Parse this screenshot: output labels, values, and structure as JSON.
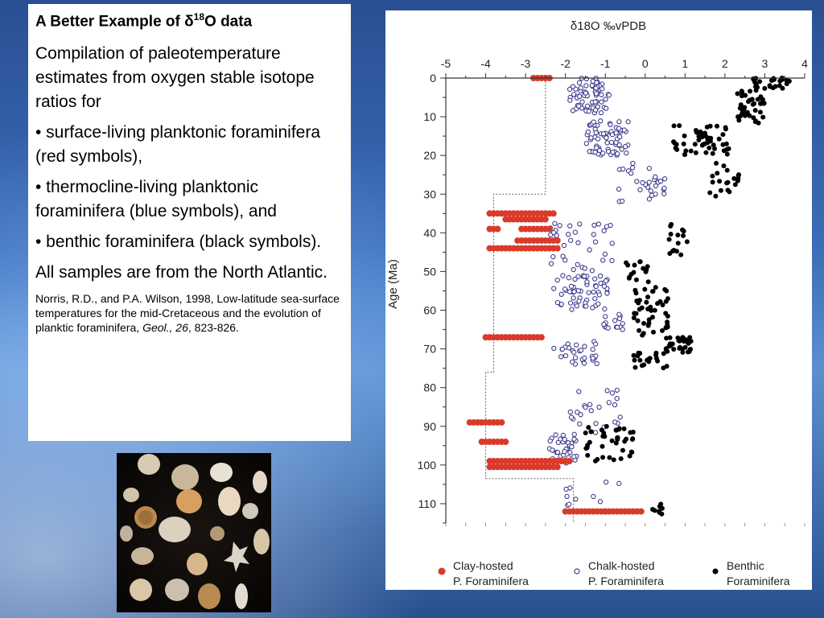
{
  "textbox": {
    "title_prefix": "A Better Example of δ",
    "title_sup": "18",
    "title_suffix": "O data",
    "intro": "Compilation of paleotemperature estimates from oxygen stable isotope ratios for",
    "bullet1": "• surface-living planktonic foraminifera (red symbols),",
    "bullet2": "• thermocline-living planktonic foraminifera (blue symbols), and",
    "bullet3": "• benthic foraminifera (black symbols).",
    "note": "All samples are from the North Atlantic.",
    "ref_text": "Norris, R.D., and P.A. Wilson, 1998, Low-latitude sea-surface temperatures for the mid-Cretaceous and the evolution of planktic foraminifera, ",
    "ref_journal": "Geol., 26",
    "ref_pages": ", 823-826."
  },
  "colors": {
    "clay": "#d93a2a",
    "chalk": "#3d3a8c",
    "benthic": "#000000"
  },
  "chart_data": {
    "type": "scatter",
    "title": "δ18O ‰vPDB",
    "xlabel": "δ18O ‰vPDB",
    "ylabel": "Age (Ma)",
    "xlim": [
      -5,
      4
    ],
    "ylim": [
      0,
      115
    ],
    "x_axis_position": "top",
    "y_inverted": true,
    "xticks": [
      -5,
      -4,
      -3,
      -2,
      -1,
      0,
      1,
      2,
      3,
      4
    ],
    "yticks": [
      0,
      10,
      20,
      30,
      40,
      50,
      60,
      70,
      80,
      90,
      100,
      110
    ],
    "grid": false,
    "series": [
      {
        "name": "Clay-hosted P. Foraminifera",
        "legend_line1": "Clay-hosted",
        "legend_line2": "P. Foraminifera",
        "marker": "filled-circle",
        "color": "#d93a2a",
        "clusters": [
          {
            "y": 0,
            "x": [
              -2.8,
              -2.4
            ]
          },
          {
            "y": 35,
            "x": [
              -3.9,
              -2.3
            ]
          },
          {
            "y": 36.5,
            "x": [
              -3.5,
              -2.5
            ]
          },
          {
            "y": 39,
            "x": [
              -3.9,
              -3.7
            ]
          },
          {
            "y": 39,
            "x": [
              -3.1,
              -2.4
            ]
          },
          {
            "y": 42,
            "x": [
              -3.2,
              -2.2
            ]
          },
          {
            "y": 44,
            "x": [
              -3.9,
              -2.2
            ]
          },
          {
            "y": 67,
            "x": [
              -4.0,
              -2.6
            ]
          },
          {
            "y": 89,
            "x": [
              -4.4,
              -3.6
            ]
          },
          {
            "y": 94,
            "x": [
              -4.1,
              -3.5
            ]
          },
          {
            "y": 99,
            "x": [
              -3.9,
              -1.9
            ]
          },
          {
            "y": 100.5,
            "x": [
              -3.9,
              -2.2
            ]
          },
          {
            "y": 112,
            "x": [
              -2.0,
              -1.0
            ]
          },
          {
            "y": 112,
            "x": [
              -1.0,
              -0.1
            ]
          }
        ],
        "boundary_x": [
          -2.5,
          -2.5,
          -3.8,
          -3.8,
          -4.0,
          -4.0,
          -1.8,
          -1.8
        ],
        "boundary_y": [
          0,
          30,
          30,
          76,
          76,
          103.5,
          103.5,
          115
        ]
      },
      {
        "name": "Chalk-hosted P. Foraminifera",
        "legend_line1": "Chalk-hosted",
        "legend_line2": "P. Foraminifera",
        "marker": "open-circle",
        "color": "#3d3a8c",
        "clusters": [
          {
            "y0": 0,
            "y1": 9,
            "x0": -1.9,
            "x1": -0.9,
            "n": 70
          },
          {
            "y0": 11,
            "y1": 20,
            "x0": -1.5,
            "x1": -0.4,
            "n": 70
          },
          {
            "y0": 22,
            "y1": 32,
            "x0": -0.7,
            "x1": 0.5,
            "n": 30
          },
          {
            "y0": 37,
            "y1": 50,
            "x0": -2.4,
            "x1": -0.7,
            "n": 35
          },
          {
            "y0": 51,
            "y1": 60,
            "x0": -2.3,
            "x1": -0.9,
            "n": 60
          },
          {
            "y0": 61,
            "y1": 65,
            "x0": -1.1,
            "x1": -0.5,
            "n": 15
          },
          {
            "y0": 68,
            "y1": 74,
            "x0": -2.3,
            "x1": -1.2,
            "n": 30
          },
          {
            "y0": 80,
            "y1": 92,
            "x0": -2.0,
            "x1": -0.6,
            "n": 25
          },
          {
            "y0": 92,
            "y1": 100,
            "x0": -2.4,
            "x1": -1.7,
            "n": 35
          },
          {
            "y0": 104,
            "y1": 111,
            "x0": -2.0,
            "x1": -0.5,
            "n": 10
          }
        ]
      },
      {
        "name": "Benthic Foraminifera",
        "legend_line1": "Benthic",
        "legend_line2": "Foraminifera",
        "marker": "filled-circle",
        "color": "#000000",
        "clusters": [
          {
            "y0": 0,
            "y1": 3,
            "x0": 2.7,
            "x1": 3.7,
            "n": 25
          },
          {
            "y0": 3,
            "y1": 12,
            "x0": 2.3,
            "x1": 3.0,
            "n": 40
          },
          {
            "y0": 12,
            "y1": 20,
            "x0": 0.7,
            "x1": 2.1,
            "n": 50
          },
          {
            "y0": 22,
            "y1": 31,
            "x0": 1.6,
            "x1": 2.4,
            "n": 20
          },
          {
            "y0": 37,
            "y1": 46,
            "x0": 0.6,
            "x1": 1.1,
            "n": 15
          },
          {
            "y0": 47,
            "y1": 53,
            "x0": -0.6,
            "x1": 0.1,
            "n": 15
          },
          {
            "y0": 54,
            "y1": 67,
            "x0": -0.3,
            "x1": 0.6,
            "n": 45
          },
          {
            "y0": 67,
            "y1": 71,
            "x0": 0.5,
            "x1": 1.2,
            "n": 35
          },
          {
            "y0": 71,
            "y1": 75,
            "x0": -0.3,
            "x1": 0.6,
            "n": 20
          },
          {
            "y0": 90,
            "y1": 99,
            "x0": -1.6,
            "x1": -0.3,
            "n": 40
          },
          {
            "y0": 110,
            "y1": 113,
            "x0": 0.0,
            "x1": 0.5,
            "n": 8
          }
        ]
      }
    ],
    "legend_position": "bottom"
  }
}
